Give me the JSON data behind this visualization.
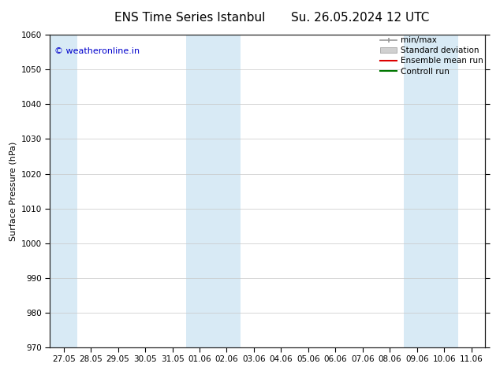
{
  "title_left": "ENS Time Series Istanbul",
  "title_right": "Su. 26.05.2024 12 UTC",
  "ylabel": "Surface Pressure (hPa)",
  "ylim": [
    970,
    1060
  ],
  "yticks": [
    970,
    980,
    990,
    1000,
    1010,
    1020,
    1030,
    1040,
    1050,
    1060
  ],
  "x_labels": [
    "27.05",
    "28.05",
    "29.05",
    "30.05",
    "31.05",
    "01.06",
    "02.06",
    "03.06",
    "04.06",
    "05.06",
    "06.06",
    "07.06",
    "08.06",
    "09.06",
    "10.06",
    "11.06"
  ],
  "shade_indices": [
    0,
    5,
    6,
    13,
    14
  ],
  "shade_color": "#d8eaf5",
  "background_color": "#ffffff",
  "watermark": "© weatheronline.in",
  "legend_items": [
    {
      "label": "min/max",
      "color": "#999999",
      "style": "minmax"
    },
    {
      "label": "Standard deviation",
      "color": "#cccccc",
      "style": "box"
    },
    {
      "label": "Ensemble mean run",
      "color": "#dd0000",
      "style": "line"
    },
    {
      "label": "Controll run",
      "color": "#007700",
      "style": "line"
    }
  ],
  "grid_color": "#c8c8c8",
  "tick_label_fontsize": 7.5,
  "axis_label_fontsize": 8,
  "title_fontsize": 11,
  "legend_fontsize": 7.5,
  "watermark_color": "#0000cc",
  "watermark_fontsize": 8
}
